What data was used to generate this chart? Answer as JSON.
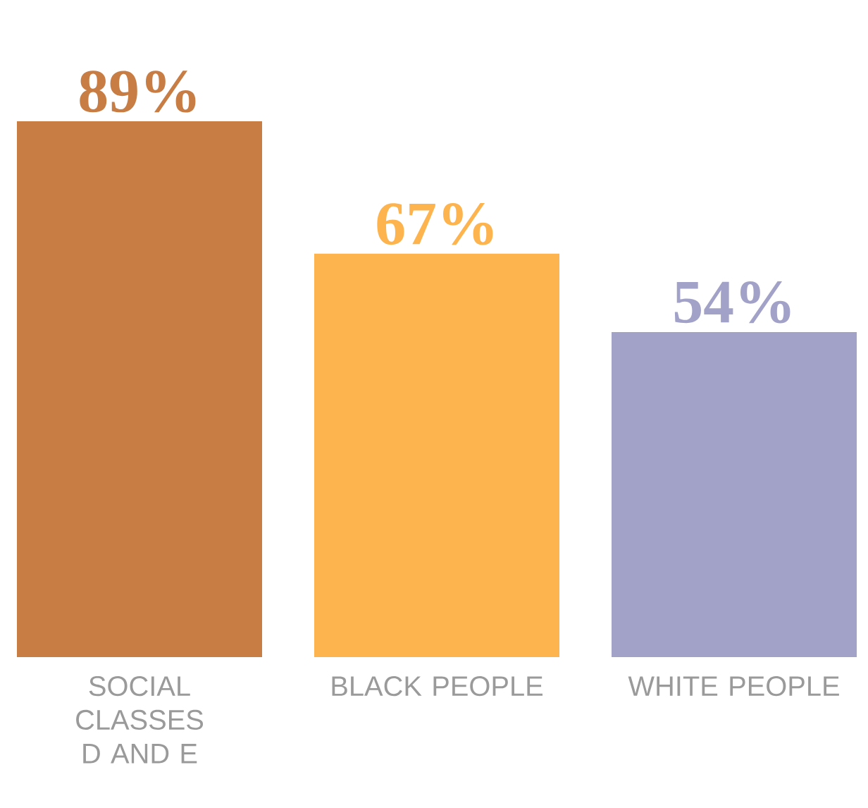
{
  "chart_data": {
    "type": "bar",
    "categories": [
      "SOCIAL CLASSES D AND E",
      "BLACK PEOPLE",
      "WHITE PEOPLE"
    ],
    "values": [
      89,
      67,
      54
    ],
    "value_labels": [
      "89%",
      "67%",
      "54%"
    ],
    "colors": [
      "#c87d45",
      "#fdb44f",
      "#a2a2c8"
    ]
  }
}
